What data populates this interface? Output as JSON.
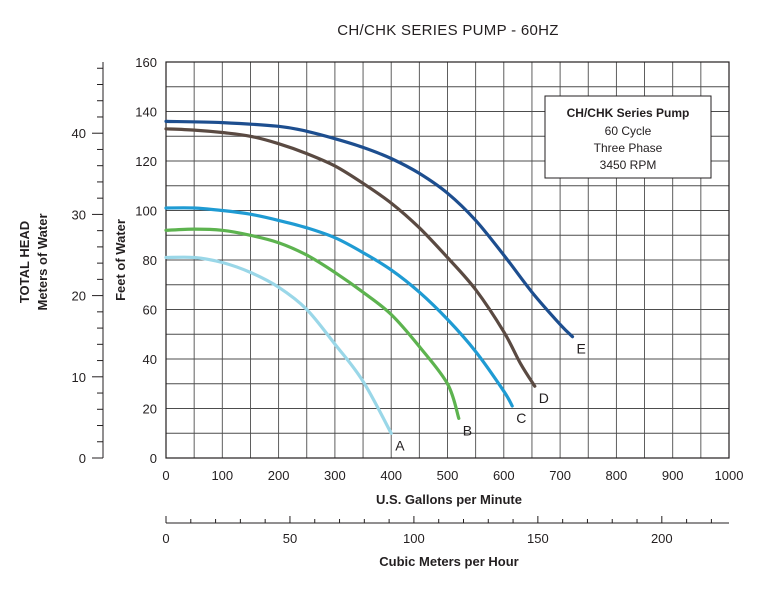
{
  "chart_data": {
    "type": "line",
    "title": "CH/CHK SERIES PUMP - 60HZ",
    "x": {
      "label": "U.S. Gallons per Minute",
      "range": [
        0,
        1000
      ],
      "ticks": [
        0,
        100,
        200,
        300,
        400,
        500,
        600,
        700,
        800,
        900,
        1000
      ]
    },
    "x2": {
      "label": "Cubic Meters per Hour",
      "range": [
        0,
        227.1
      ],
      "ticks": [
        0,
        50,
        100,
        150,
        200
      ]
    },
    "y": {
      "label": "Feet of Water",
      "range": [
        0,
        160
      ],
      "ticks": [
        0,
        20,
        40,
        60,
        80,
        100,
        120,
        140,
        160
      ]
    },
    "y2": {
      "label_line1": "TOTAL HEAD",
      "label_line2": "Meters of Water",
      "range": [
        0,
        48.77
      ],
      "ticks": [
        0,
        10,
        20,
        30,
        40
      ]
    },
    "grid": true,
    "legend": {
      "position": "top-right",
      "lines": [
        "CH/CHK Series Pump",
        "60 Cycle",
        "Three Phase",
        "3450 RPM"
      ]
    },
    "series": [
      {
        "name": "A",
        "color": "#9ad7e8",
        "points": [
          [
            0,
            81
          ],
          [
            50,
            81
          ],
          [
            100,
            79
          ],
          [
            150,
            75
          ],
          [
            200,
            69
          ],
          [
            250,
            60
          ],
          [
            300,
            46
          ],
          [
            350,
            31
          ],
          [
            400,
            10
          ]
        ]
      },
      {
        "name": "B",
        "color": "#5db34f",
        "points": [
          [
            0,
            92
          ],
          [
            50,
            92.5
          ],
          [
            100,
            92
          ],
          [
            150,
            90
          ],
          [
            200,
            87
          ],
          [
            250,
            82
          ],
          [
            300,
            75
          ],
          [
            350,
            67
          ],
          [
            400,
            58
          ],
          [
            450,
            45
          ],
          [
            500,
            30
          ],
          [
            520,
            16
          ]
        ]
      },
      {
        "name": "C",
        "color": "#1f9bd3",
        "points": [
          [
            0,
            101
          ],
          [
            50,
            101
          ],
          [
            100,
            100
          ],
          [
            150,
            98.5
          ],
          [
            200,
            96
          ],
          [
            250,
            93
          ],
          [
            300,
            89
          ],
          [
            350,
            83
          ],
          [
            400,
            76
          ],
          [
            450,
            67
          ],
          [
            500,
            56
          ],
          [
            550,
            43
          ],
          [
            600,
            27
          ],
          [
            615,
            21
          ]
        ]
      },
      {
        "name": "D",
        "color": "#5a4a42",
        "points": [
          [
            0,
            133
          ],
          [
            50,
            132.5
          ],
          [
            100,
            131.5
          ],
          [
            150,
            130
          ],
          [
            200,
            127
          ],
          [
            250,
            123
          ],
          [
            300,
            118
          ],
          [
            350,
            111
          ],
          [
            400,
            103
          ],
          [
            450,
            93
          ],
          [
            500,
            81
          ],
          [
            550,
            68
          ],
          [
            600,
            51
          ],
          [
            630,
            38
          ],
          [
            655,
            29
          ]
        ]
      },
      {
        "name": "E",
        "color": "#1d4e8f",
        "points": [
          [
            0,
            136
          ],
          [
            100,
            135.5
          ],
          [
            200,
            134
          ],
          [
            250,
            132
          ],
          [
            300,
            129
          ],
          [
            350,
            125.5
          ],
          [
            400,
            121
          ],
          [
            450,
            115
          ],
          [
            500,
            107
          ],
          [
            550,
            96
          ],
          [
            600,
            82
          ],
          [
            650,
            67
          ],
          [
            700,
            54
          ],
          [
            722,
            49
          ]
        ]
      }
    ]
  }
}
